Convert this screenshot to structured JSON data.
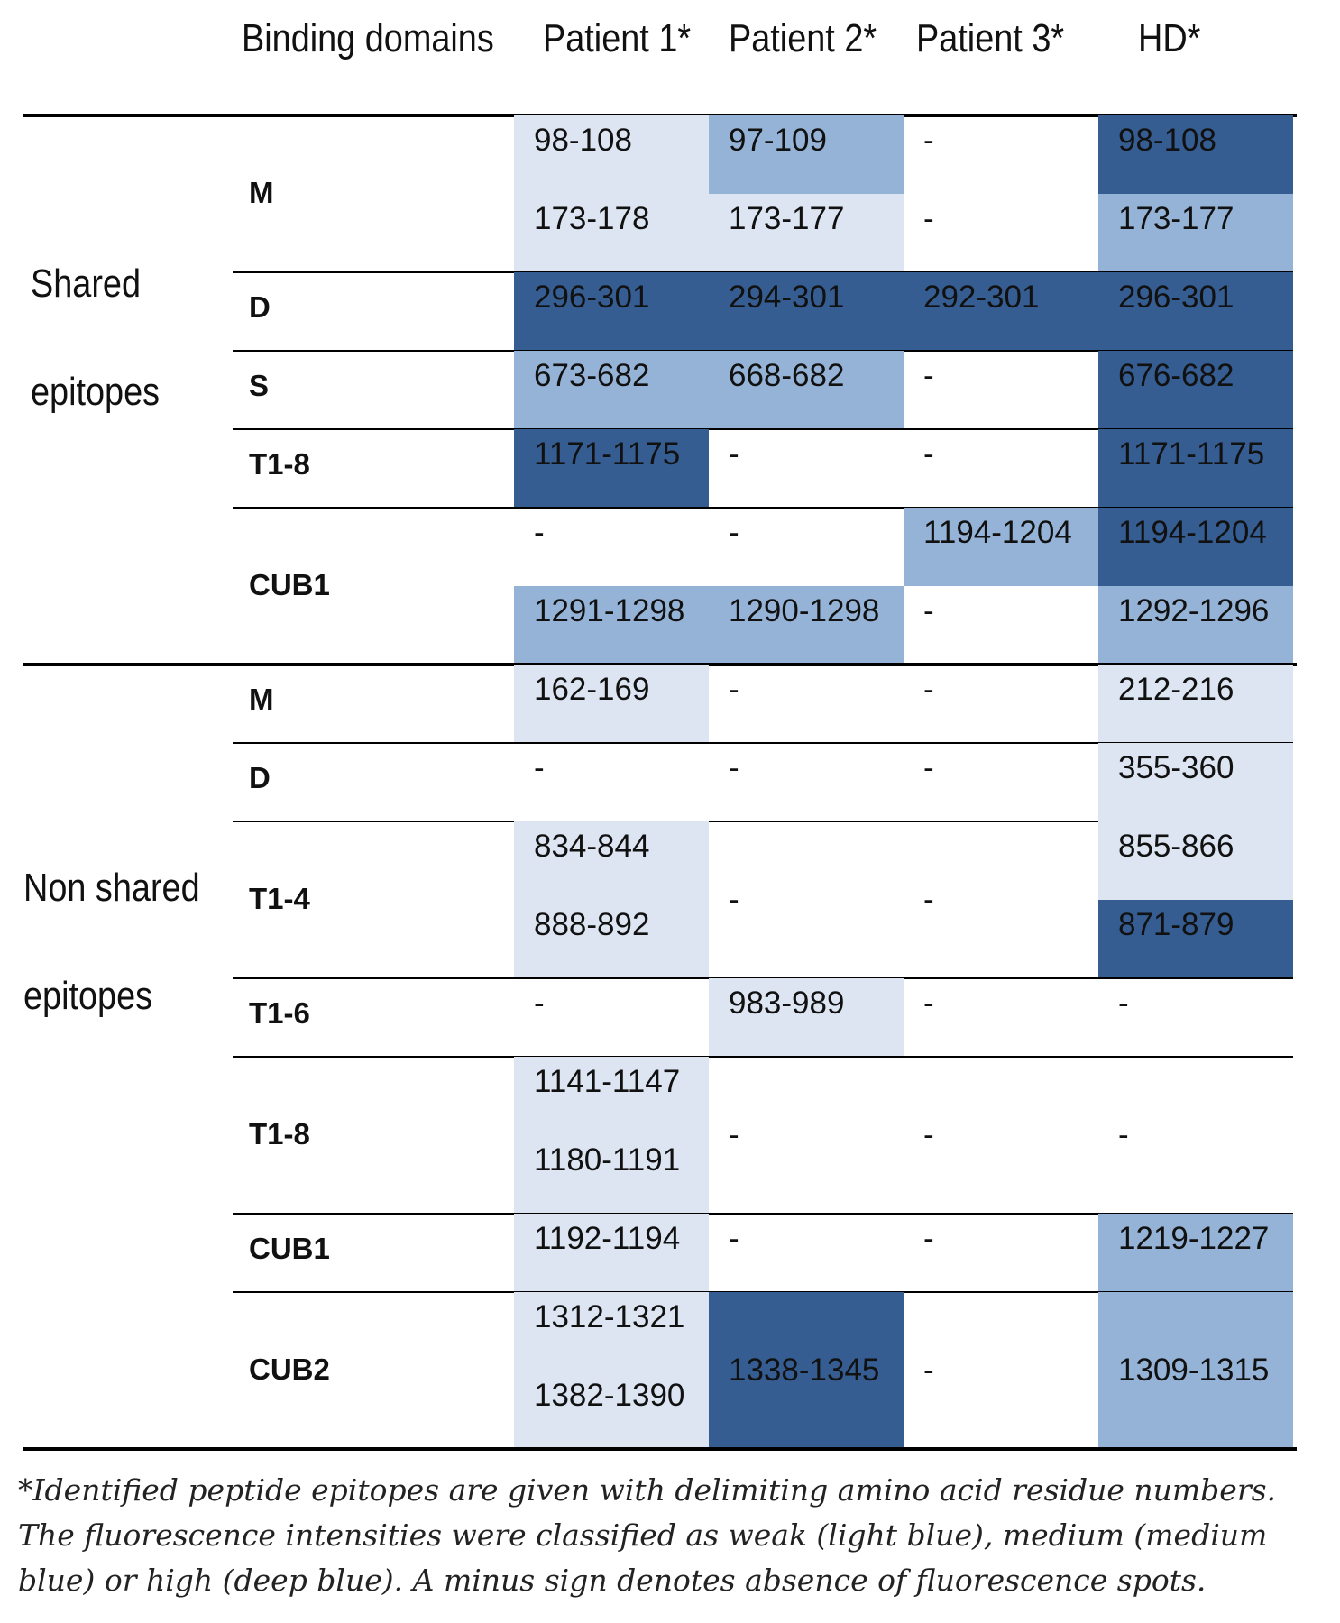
{
  "colors": {
    "weak": "#dce5f1",
    "medium": "#95b3d7",
    "high": "#355d92"
  },
  "header": {
    "binding_domains": "Binding domains",
    "patient1": "Patient 1*",
    "patient2": "Patient 2*",
    "patient3": "Patient 3*",
    "hd": "HD*"
  },
  "groups": {
    "shared_line1": "Shared",
    "shared_line2": "epitopes",
    "nonshared_line1": "Non shared",
    "nonshared_line2": "epitopes"
  },
  "rows": [
    {
      "domain": "M",
      "group": "shared",
      "sub": 2,
      "cells": [
        {
          "bg": "weak",
          "v": [
            "98-108",
            "173-178"
          ]
        },
        {
          "bg": [
            "medium",
            "weak"
          ],
          "v": [
            "97-109",
            "173-177"
          ]
        },
        {
          "bg": "none",
          "v": [
            "-",
            "-"
          ]
        },
        {
          "bg": [
            "high",
            "medium"
          ],
          "v": [
            "98-108",
            "173-177"
          ]
        }
      ]
    },
    {
      "domain": "D",
      "group": "shared",
      "sub": 1,
      "cells": [
        {
          "bg": "high",
          "v": [
            "296-301"
          ]
        },
        {
          "bg": "high",
          "v": [
            "294-301"
          ]
        },
        {
          "bg": "high",
          "v": [
            "292-301"
          ]
        },
        {
          "bg": "high",
          "v": [
            "296-301"
          ]
        }
      ]
    },
    {
      "domain": "S",
      "group": "shared",
      "sub": 1,
      "cells": [
        {
          "bg": "medium",
          "v": [
            "673-682"
          ]
        },
        {
          "bg": "medium",
          "v": [
            "668-682"
          ]
        },
        {
          "bg": "none",
          "v": [
            "-"
          ]
        },
        {
          "bg": "high",
          "v": [
            "676-682"
          ]
        }
      ]
    },
    {
      "domain": "T1-8",
      "group": "shared",
      "sub": 1,
      "cells": [
        {
          "bg": "high",
          "v": [
            "1171-1175"
          ]
        },
        {
          "bg": "none",
          "v": [
            "-"
          ]
        },
        {
          "bg": "none",
          "v": [
            "-"
          ]
        },
        {
          "bg": "high",
          "v": [
            "1171-1175"
          ]
        }
      ]
    },
    {
      "domain": "CUB1",
      "group": "shared",
      "sub": 2,
      "cells": [
        {
          "bg": [
            "none",
            "medium"
          ],
          "v": [
            "-",
            "1291-1298"
          ]
        },
        {
          "bg": [
            "none",
            "medium"
          ],
          "v": [
            "-",
            "1290-1298"
          ]
        },
        {
          "bg": [
            "medium",
            "none"
          ],
          "v": [
            "1194-1204",
            "-"
          ]
        },
        {
          "bg": [
            "high",
            "medium"
          ],
          "v": [
            "1194-1204",
            "1292-1296"
          ]
        }
      ]
    },
    {
      "domain": "M",
      "group": "nonshared",
      "sub": 1,
      "cells": [
        {
          "bg": "weak",
          "v": [
            "162-169"
          ]
        },
        {
          "bg": "none",
          "v": [
            "-"
          ]
        },
        {
          "bg": "none",
          "v": [
            "-"
          ]
        },
        {
          "bg": "weak",
          "v": [
            "212-216"
          ]
        }
      ]
    },
    {
      "domain": "D",
      "group": "nonshared",
      "sub": 1,
      "cells": [
        {
          "bg": "none",
          "v": [
            "-"
          ]
        },
        {
          "bg": "none",
          "v": [
            "-"
          ]
        },
        {
          "bg": "none",
          "v": [
            "-"
          ]
        },
        {
          "bg": "weak",
          "v": [
            "355-360"
          ]
        }
      ]
    },
    {
      "domain": "T1-4",
      "group": "nonshared",
      "sub": 2,
      "cells": [
        {
          "bg": "weak",
          "v": [
            "834-844",
            "888-892"
          ]
        },
        {
          "bg": "none",
          "v": [
            "-"
          ]
        },
        {
          "bg": "none",
          "v": [
            "-"
          ]
        },
        {
          "bg": [
            "weak",
            "high"
          ],
          "v": [
            "855-866",
            "871-879"
          ]
        }
      ]
    },
    {
      "domain": "T1-6",
      "group": "nonshared",
      "sub": 1,
      "cells": [
        {
          "bg": "none",
          "v": [
            "-"
          ]
        },
        {
          "bg": "weak",
          "v": [
            "983-989"
          ]
        },
        {
          "bg": "none",
          "v": [
            "-"
          ]
        },
        {
          "bg": "none",
          "v": [
            "-"
          ]
        }
      ]
    },
    {
      "domain": "T1-8",
      "group": "nonshared",
      "sub": 2,
      "cells": [
        {
          "bg": "weak",
          "v": [
            "1141-1147",
            "1180-1191"
          ]
        },
        {
          "bg": "none",
          "v": [
            "-"
          ]
        },
        {
          "bg": "none",
          "v": [
            "-"
          ]
        },
        {
          "bg": "none",
          "v": [
            "-"
          ]
        }
      ]
    },
    {
      "domain": "CUB1",
      "group": "nonshared",
      "sub": 1,
      "cells": [
        {
          "bg": "weak",
          "v": [
            "1192-1194"
          ]
        },
        {
          "bg": "none",
          "v": [
            "-"
          ]
        },
        {
          "bg": "none",
          "v": [
            "-"
          ]
        },
        {
          "bg": "medium",
          "v": [
            "1219-1227"
          ]
        }
      ]
    },
    {
      "domain": "CUB2",
      "group": "nonshared",
      "sub": 2,
      "cells": [
        {
          "bg": "weak",
          "v": [
            "1312-1321",
            "1382-1390"
          ]
        },
        {
          "bg": "high",
          "v": [
            "1338-1345"
          ]
        },
        {
          "bg": "none",
          "v": [
            "-"
          ]
        },
        {
          "bg": "medium",
          "v": [
            "1309-1315"
          ]
        }
      ]
    }
  ],
  "footnote": {
    "line1": "*Identified peptide epitopes are given with delimiting amino acid residue numbers.",
    "line2": "The fluorescence intensities were classified as weak (light blue), medium (medium",
    "line3": "blue) or high (deep blue). A minus sign denotes absence of fluorescence spots."
  }
}
